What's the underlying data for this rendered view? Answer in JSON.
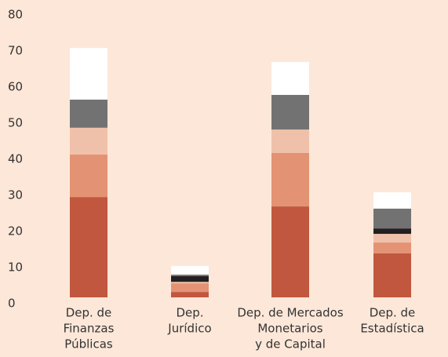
{
  "chart_data": {
    "type": "stacked-bar",
    "categories": [
      [
        "Dep. de",
        "Finanzas",
        "Públicas"
      ],
      [
        "Dep.",
        "Jurídico"
      ],
      [
        "Dep. de Mercados",
        "Monetarios",
        "y de Capital"
      ],
      [
        "Dep. de",
        "Estadística"
      ]
    ],
    "series": [
      {
        "color": "#c0573e",
        "values": [
          27.8,
          1.5,
          25.2,
          12.2
        ]
      },
      {
        "color": "#e39373",
        "values": [
          11.8,
          2.4,
          14.8,
          3.0
        ]
      },
      {
        "color": "#f0c1aa",
        "values": [
          7.4,
          0.4,
          6.5,
          2.4
        ]
      },
      {
        "color": "#231f20",
        "values": [
          0,
          1.6,
          0,
          1.5
        ]
      },
      {
        "color": "#737273",
        "values": [
          7.8,
          0.4,
          9.6,
          5.5
        ]
      },
      {
        "color": "#ffffff",
        "values": [
          14.3,
          2.4,
          9.1,
          4.5
        ]
      }
    ],
    "ylim": [
      0,
      80
    ],
    "yticks": [
      0,
      10,
      20,
      30,
      40,
      50,
      60,
      70,
      80
    ]
  }
}
